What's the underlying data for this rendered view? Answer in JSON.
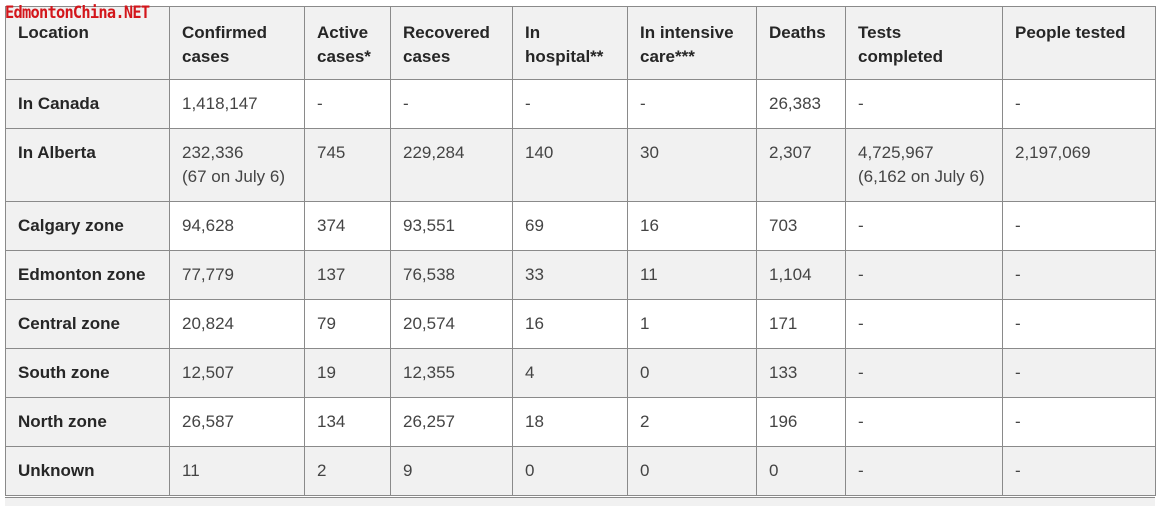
{
  "watermark": "EdmontonChina.NET",
  "headers": {
    "location": "Location",
    "confirmed": [
      "Confirmed",
      "cases"
    ],
    "active": [
      "Active",
      "cases*"
    ],
    "recovered": [
      "Recovered",
      "cases"
    ],
    "hospital": [
      "In",
      "hospital**"
    ],
    "icu": [
      "In intensive",
      "care***"
    ],
    "deaths": "Deaths",
    "tests": [
      "Tests",
      "completed"
    ],
    "people": "People tested"
  },
  "rows": [
    {
      "location": "In Canada",
      "confirmed": "1,418,147",
      "confirmed_note": "",
      "active": "-",
      "recovered": "-",
      "hospital": "-",
      "icu": "-",
      "deaths": "26,383",
      "tests": "-",
      "tests_note": "",
      "people": "-"
    },
    {
      "location": "In Alberta",
      "confirmed": "232,336",
      "confirmed_note": "(67 on July 6)",
      "active": "745",
      "recovered": "229,284",
      "hospital": "140",
      "icu": "30",
      "deaths": "2,307",
      "tests": "4,725,967",
      "tests_note": "(6,162 on July 6)",
      "people": "2,197,069"
    },
    {
      "location": "Calgary zone",
      "confirmed": "94,628",
      "confirmed_note": "",
      "active": "374",
      "recovered": "93,551",
      "hospital": "69",
      "icu": "16",
      "deaths": "703",
      "tests": "-",
      "tests_note": "",
      "people": "-"
    },
    {
      "location": "Edmonton zone",
      "confirmed": "77,779",
      "confirmed_note": "",
      "active": "137",
      "recovered": "76,538",
      "hospital": "33",
      "icu": "11",
      "deaths": "1,104",
      "tests": "-",
      "tests_note": "",
      "people": "-"
    },
    {
      "location": "Central zone",
      "confirmed": "20,824",
      "confirmed_note": "",
      "active": "79",
      "recovered": "20,574",
      "hospital": "16",
      "icu": "1",
      "deaths": "171",
      "tests": "-",
      "tests_note": "",
      "people": "-"
    },
    {
      "location": "South zone",
      "confirmed": "12,507",
      "confirmed_note": "",
      "active": "19",
      "recovered": "12,355",
      "hospital": "4",
      "icu": "0",
      "deaths": "133",
      "tests": "-",
      "tests_note": "",
      "people": "-"
    },
    {
      "location": "North zone",
      "confirmed": "26,587",
      "confirmed_note": "",
      "active": "134",
      "recovered": "26,257",
      "hospital": "18",
      "icu": "2",
      "deaths": "196",
      "tests": "-",
      "tests_note": "",
      "people": "-"
    },
    {
      "location": "Unknown",
      "confirmed": "11",
      "confirmed_note": "",
      "active": "2",
      "recovered": "9",
      "hospital": "0",
      "icu": "0",
      "deaths": "0",
      "tests": "-",
      "tests_note": "",
      "people": "-"
    }
  ]
}
